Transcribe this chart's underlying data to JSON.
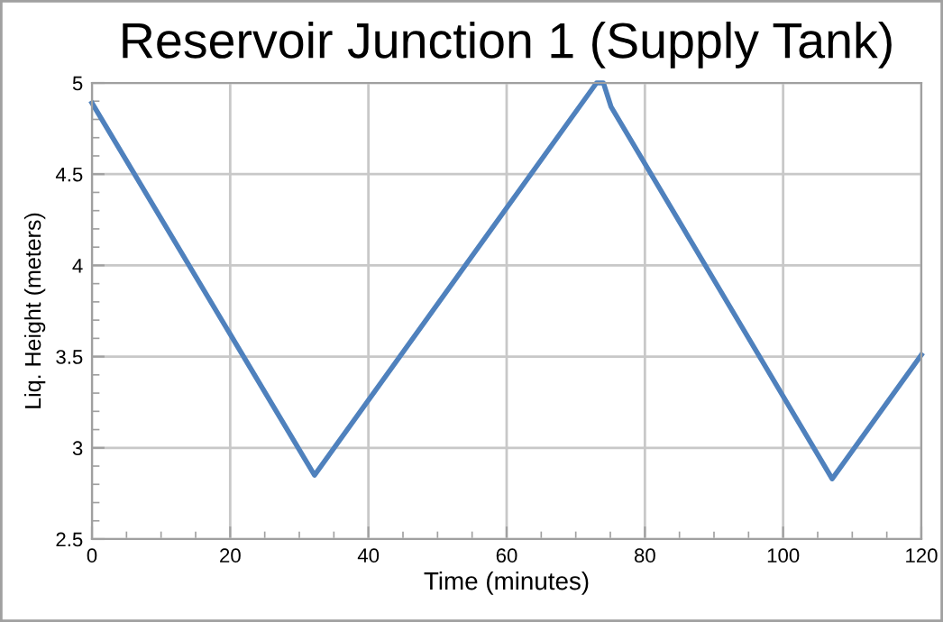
{
  "chart_data": {
    "type": "line",
    "title": "Reservoir Junction 1 (Supply Tank)",
    "xlabel": "Time (minutes)",
    "ylabel": "Liq. Height (meters)",
    "x": [
      0,
      32.2,
      73,
      74,
      75.1,
      107.1,
      120
    ],
    "series": [
      {
        "color": "#4f81bd",
        "values": [
          4.89,
          2.85,
          5.0,
          5.0,
          4.87,
          2.83,
          3.51
        ]
      }
    ],
    "xlim": [
      0,
      120
    ],
    "ylim": [
      2.5,
      5
    ],
    "xticks": [
      0,
      20,
      40,
      60,
      80,
      100,
      120
    ],
    "yticks": [
      2.5,
      3,
      3.5,
      4,
      4.5,
      5
    ],
    "grid": true,
    "legend": false
  }
}
